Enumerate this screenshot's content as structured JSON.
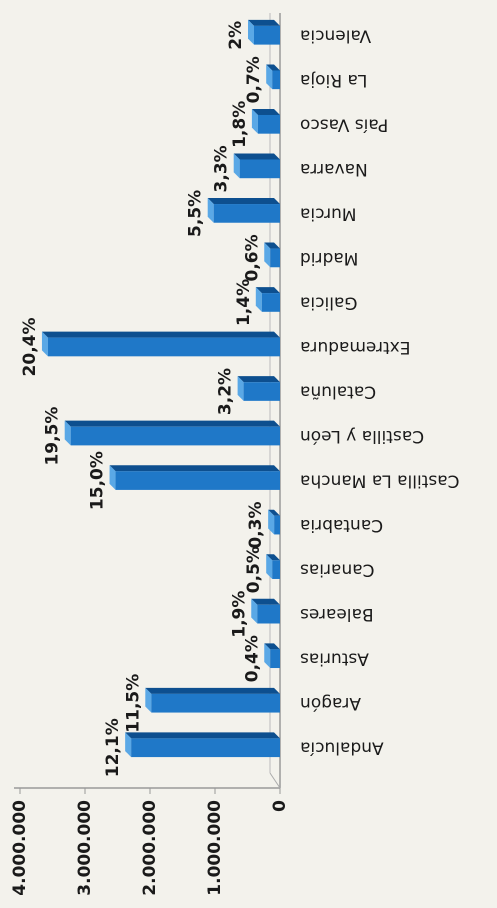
{
  "chart_data": {
    "type": "bar",
    "categories": [
      "Andalucía",
      "Aragón",
      "Asturias",
      "Baleares",
      "Canarias",
      "Cantabria",
      "Castilla La Mancha",
      "Castilla y León",
      "Cataluña",
      "Extremadura",
      "Galicia",
      "Madrid",
      "Murcia",
      "Navarra",
      "País Vasco",
      "La Rioja",
      "Valencia"
    ],
    "values": [
      2290000,
      1980000,
      150000,
      350000,
      120000,
      90000,
      2530000,
      3220000,
      560000,
      3570000,
      280000,
      150000,
      1020000,
      620000,
      340000,
      120000,
      400000
    ],
    "data_labels": [
      "12,1%",
      "11,5%",
      "0,4%",
      "1,9%",
      "0,5%",
      "0,3%",
      "15,0%",
      "19,5%",
      "3,2%",
      "20,4%",
      "1,4%",
      "0,6%",
      "5,5%",
      "3,3%",
      "1,8%",
      "0,7%",
      "2%"
    ],
    "color": "#1f78c8",
    "ylim": [
      0,
      4000000
    ],
    "yticks": [
      0,
      {
        "value": 1000000,
        "label": "1.000.000"
      },
      {
        "value": 2000000,
        "label": "2.000.000"
      },
      {
        "value": 3000000,
        "label": "3.000.000"
      },
      {
        "value": 4000000,
        "label": "4.000.000"
      }
    ]
  }
}
